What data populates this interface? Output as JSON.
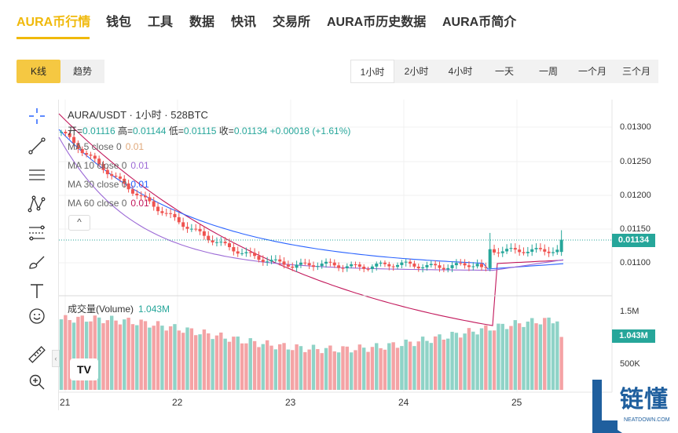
{
  "nav": {
    "items": [
      "AURA币行情",
      "钱包",
      "工具",
      "数据",
      "快讯",
      "交易所",
      "AURA币历史数据",
      "AURA币简介"
    ],
    "active_index": 0
  },
  "controls": {
    "kline_label": "K线",
    "trend_label": "趋势",
    "periods": [
      "1小时",
      "2小时",
      "4小时",
      "一天",
      "一周",
      "一个月",
      "三个月"
    ],
    "active_period": 0
  },
  "chart": {
    "title": "AURA/USDT · 1小时 · 528BTC",
    "ohlc": {
      "open_label": "开=",
      "open": "0.01116",
      "high_label": "高=",
      "high": "0.01144",
      "low_label": "低=",
      "low": "0.01115",
      "close_label": "收=",
      "close": "0.01134",
      "change": "+0.00018 (+1.61%)"
    },
    "ma": [
      {
        "label": "MA 5 close 0",
        "value": "0.01",
        "color": "#e0a87a"
      },
      {
        "label": "MA 10 close 0",
        "value": "0.01",
        "color": "#9c6ad6"
      },
      {
        "label": "MA 30 close 0",
        "value": "0.01",
        "color": "#2962ff"
      },
      {
        "label": "MA 60 close 0",
        "value": "0.01",
        "color": "#c2185b"
      }
    ],
    "volume_title": "成交量(Volume)",
    "volume_value": "1.043M",
    "price_ticks": [
      "0.01300",
      "0.01250",
      "0.01200",
      "0.01150",
      "0.01100"
    ],
    "current_price": "0.01134",
    "volume_ticks": [
      "1.5M",
      "500K"
    ],
    "current_volume": "1.043M",
    "x_ticks": [
      "21",
      "22",
      "23",
      "24",
      "25"
    ],
    "logo_text": "TV",
    "colors": {
      "up": "#26a69a",
      "down": "#ef5350",
      "vol_up": "#8fd3c7",
      "vol_down": "#f4a3a5",
      "accent": "#f0b90b"
    }
  },
  "chart_data": {
    "type": "candlestick",
    "title": "AURA/USDT · 1小时 · 528BTC",
    "ylim": [
      0.0107,
      0.0132
    ],
    "volume_ylim": [
      0,
      1700000
    ],
    "x_ticks": [
      "21",
      "22",
      "23",
      "24",
      "25"
    ],
    "last_close": 0.01134,
    "last_volume": 1043000
  },
  "watermark": {
    "text": "链懂",
    "subtext": "NEATDOWN.COM"
  }
}
